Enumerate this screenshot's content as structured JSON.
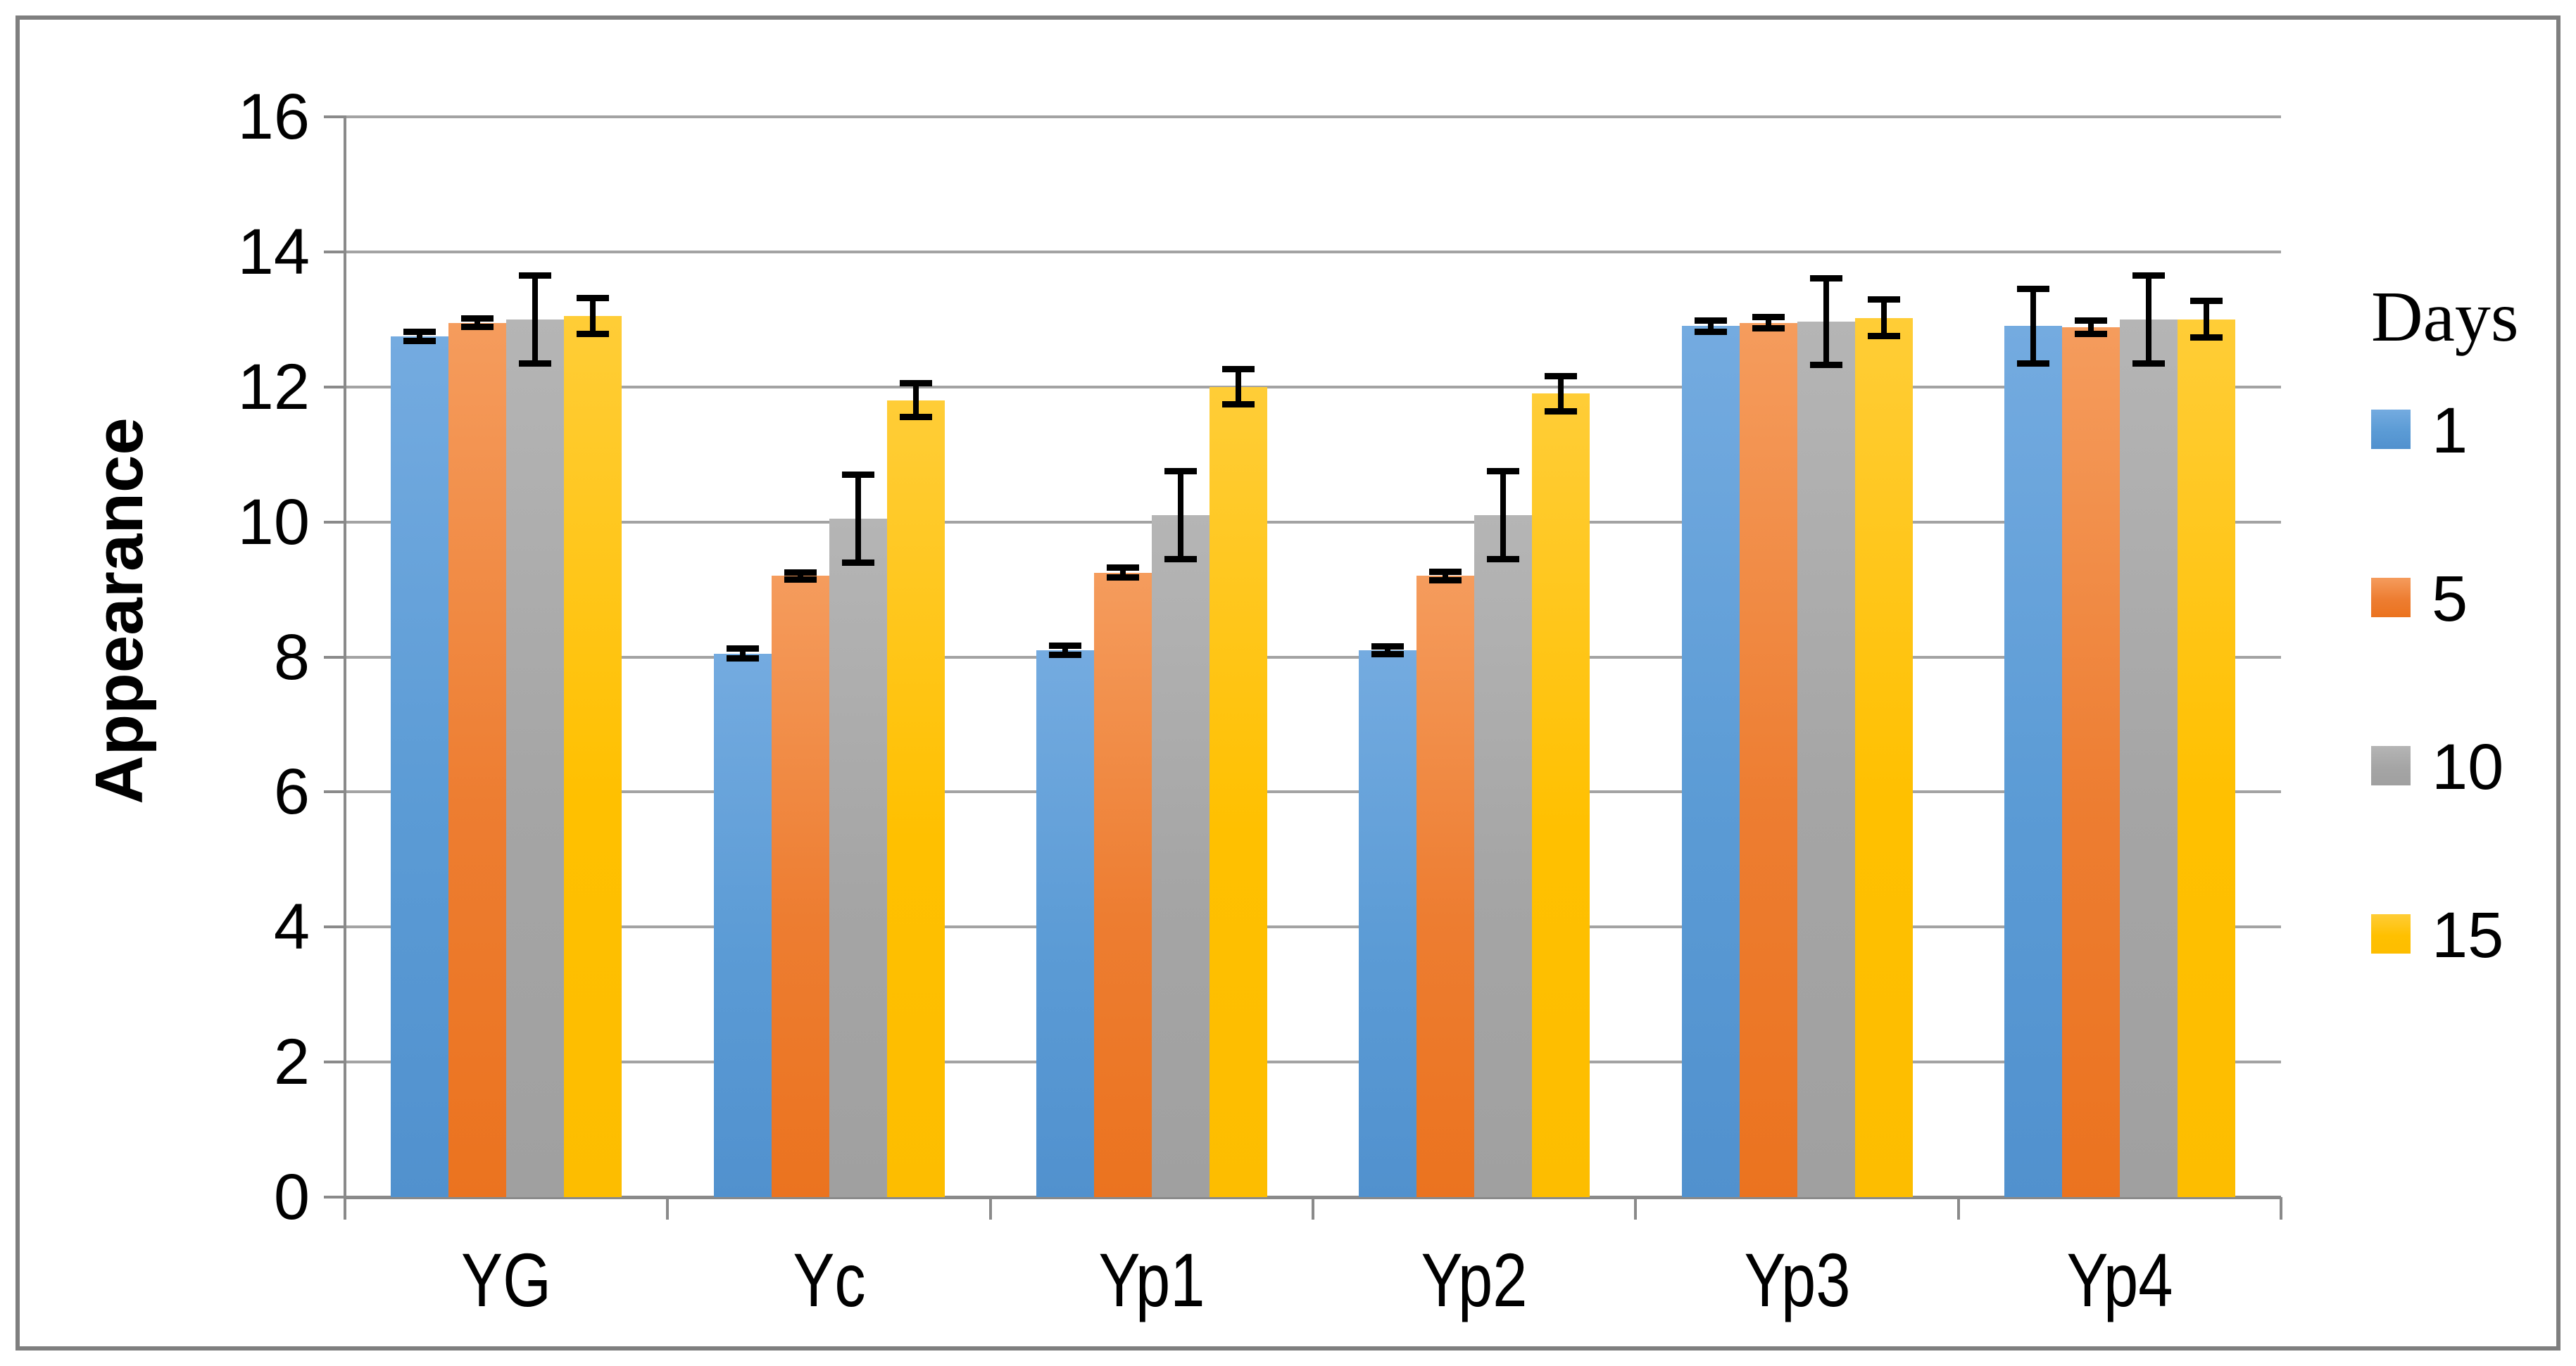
{
  "figure": {
    "background": "#ffffff",
    "border_color": "#7f7f7f"
  },
  "chart_data": {
    "type": "bar",
    "title": "",
    "xlabel": "",
    "ylabel": "Appearance",
    "ylim": [
      0,
      16
    ],
    "yticks": [
      0,
      2,
      4,
      6,
      8,
      10,
      12,
      14,
      16
    ],
    "grid": true,
    "gridline_color": "#a3a3a3",
    "axis_color": "#8a8a8a",
    "error_bar_color": "#000000",
    "legend_title": "Days",
    "legend_position": "right",
    "categories": [
      "YG",
      "Yc",
      "Yp1",
      "Yp2",
      "Yp3",
      "Yp4"
    ],
    "series": [
      {
        "name": "1",
        "color": "#5b9bd5",
        "color_top": "#74abe0",
        "color_bottom": "#5191ce",
        "values": [
          12.75,
          8.05,
          8.1,
          8.1,
          12.9,
          12.9
        ],
        "errors": [
          0.07,
          0.07,
          0.07,
          0.06,
          0.08,
          0.55
        ]
      },
      {
        "name": "5",
        "color": "#ed7d31",
        "color_top": "#f59c5d",
        "color_bottom": "#eb731f",
        "values": [
          12.95,
          9.2,
          9.25,
          9.2,
          12.95,
          12.88
        ],
        "errors": [
          0.06,
          0.05,
          0.07,
          0.06,
          0.08,
          0.1
        ]
      },
      {
        "name": "10",
        "color": "#a5a5a5",
        "color_top": "#b5b5b5",
        "color_bottom": "#a0a0a0",
        "values": [
          13.0,
          10.05,
          10.1,
          10.1,
          12.97,
          13.0
        ],
        "errors": [
          0.65,
          0.65,
          0.65,
          0.65,
          0.64,
          0.65
        ]
      },
      {
        "name": "15",
        "color": "#ffc000",
        "color_top": "#ffcd37",
        "color_bottom": "#fdbd00",
        "values": [
          13.05,
          11.8,
          12.0,
          11.9,
          13.02,
          13.0
        ],
        "errors": [
          0.27,
          0.25,
          0.26,
          0.26,
          0.27,
          0.27
        ]
      }
    ]
  }
}
